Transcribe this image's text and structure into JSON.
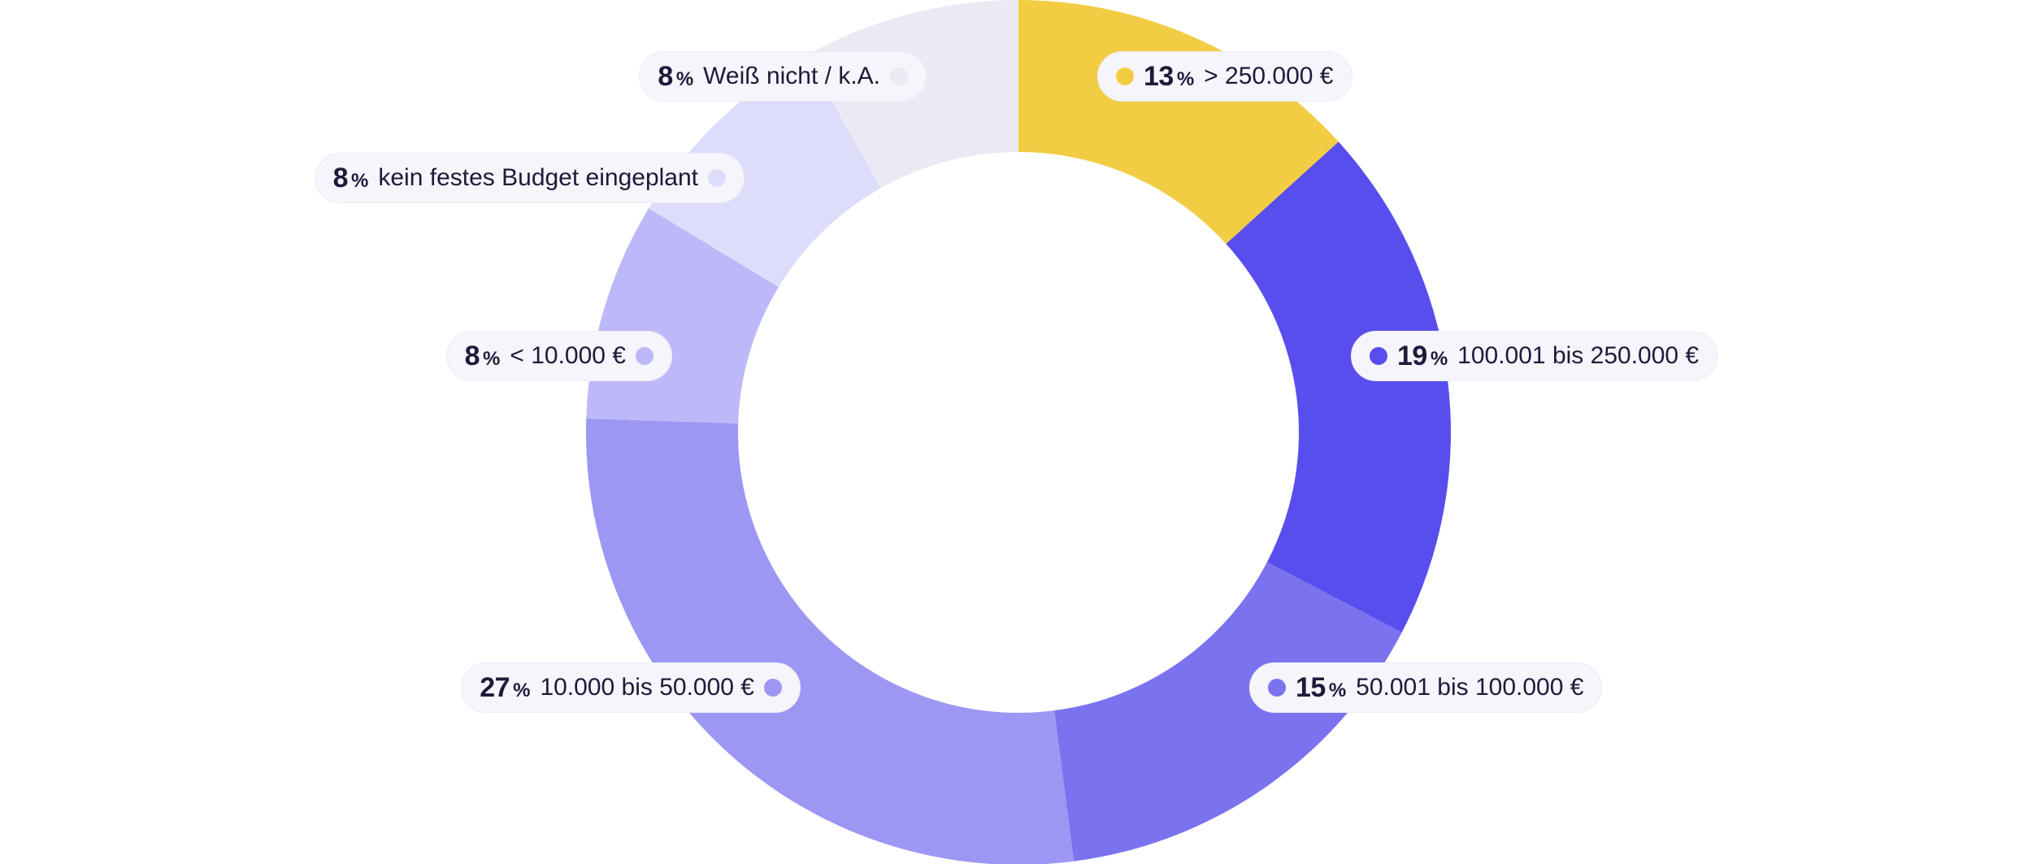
{
  "chart_data": {
    "type": "pie",
    "donut": true,
    "unit": "%",
    "title": "",
    "start_angle_deg": 0,
    "direction": "clockwise",
    "slices": [
      {
        "label": "> 250.000 €",
        "value": 13,
        "color": "#f2cd44"
      },
      {
        "label": "100.001 bis 250.000 €",
        "value": 19,
        "color": "#584eee"
      },
      {
        "label": "50.001 bis 100.000 €",
        "value": 15,
        "color": "#7b72f0"
      },
      {
        "label": "10.000 bis 50.000 €",
        "value": 27,
        "color": "#9d97f4"
      },
      {
        "label": "< 10.000 €",
        "value": 8,
        "color": "#bdb9f8"
      },
      {
        "label": "kein festes Budget eingeplant",
        "value": 8,
        "color": "#dedcfb"
      },
      {
        "label": "Weiß nicht / k.A.",
        "value": 8,
        "color": "#ebe9f3"
      }
    ]
  }
}
